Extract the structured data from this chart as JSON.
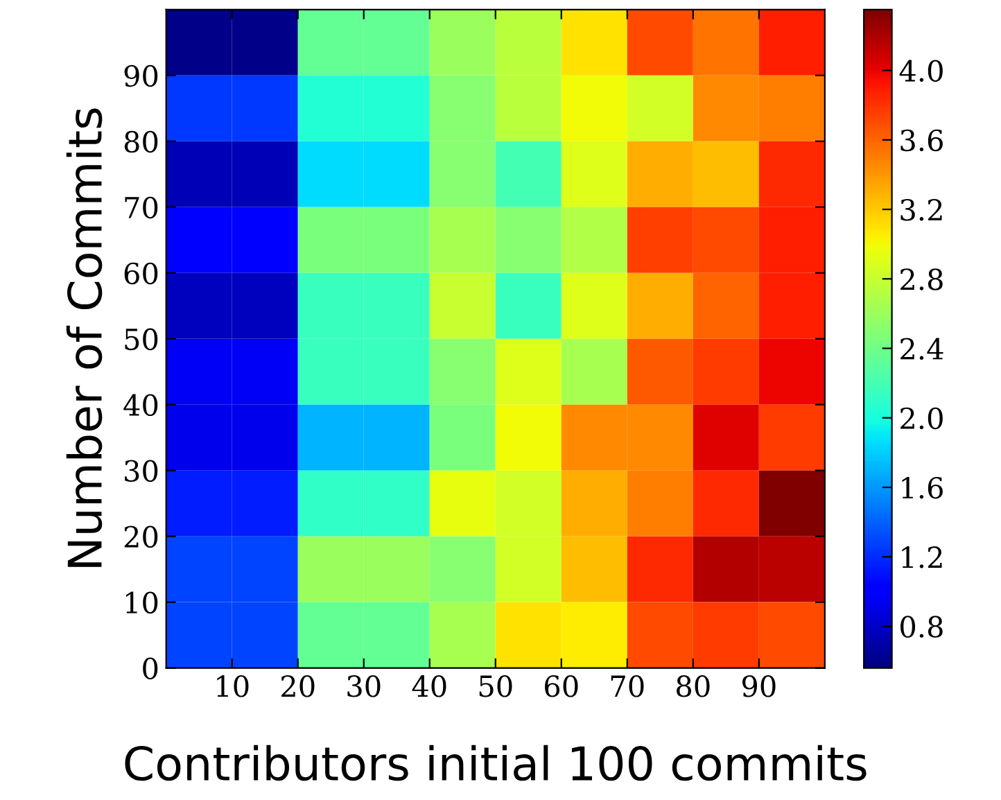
{
  "chart_data": {
    "type": "heatmap",
    "xlabel": "Contributors initial 100 commits",
    "ylabel": "Number of Commits",
    "xlim": [
      0,
      100
    ],
    "ylim": [
      0,
      100
    ],
    "xticks": [
      10,
      20,
      30,
      40,
      50,
      60,
      70,
      80,
      90
    ],
    "yticks": [
      0,
      10,
      20,
      30,
      40,
      50,
      60,
      70,
      80,
      90
    ],
    "cells": [
      [
        0.6,
        0.6,
        2.35,
        2.35,
        2.6,
        2.75,
        3.1,
        3.7,
        3.55,
        3.88
      ],
      [
        1.25,
        1.25,
        2.05,
        2.05,
        2.5,
        2.75,
        3.0,
        2.85,
        3.45,
        3.5
      ],
      [
        0.75,
        0.75,
        1.85,
        1.85,
        2.5,
        2.2,
        2.9,
        3.3,
        3.25,
        3.84
      ],
      [
        1.0,
        1.0,
        2.45,
        2.45,
        2.65,
        2.5,
        2.7,
        3.75,
        3.7,
        3.89
      ],
      [
        0.78,
        0.78,
        2.15,
        2.15,
        2.8,
        2.15,
        2.9,
        3.3,
        3.6,
        3.89
      ],
      [
        0.95,
        0.95,
        2.15,
        2.15,
        2.5,
        2.9,
        2.65,
        3.65,
        3.77,
        3.99
      ],
      [
        0.93,
        0.93,
        1.7,
        1.7,
        2.45,
        3.0,
        3.45,
        3.45,
        4.03,
        3.77
      ],
      [
        1.15,
        1.15,
        2.1,
        2.1,
        2.95,
        2.85,
        3.3,
        3.5,
        3.84,
        4.35
      ],
      [
        1.3,
        1.3,
        2.6,
        2.6,
        2.5,
        2.85,
        3.25,
        3.84,
        4.18,
        4.15
      ],
      [
        1.3,
        1.3,
        2.35,
        2.35,
        2.65,
        3.1,
        3.05,
        3.7,
        3.77,
        3.7
      ]
    ],
    "clim": [
      0.56,
      4.35
    ],
    "cticks": [
      0.8,
      1.2,
      1.6,
      {
        "value": 2,
        "label": "2.0"
      },
      2.4,
      2.8,
      3.2,
      3.6,
      {
        "value": 4,
        "label": "4.0"
      }
    ],
    "grid": false
  }
}
